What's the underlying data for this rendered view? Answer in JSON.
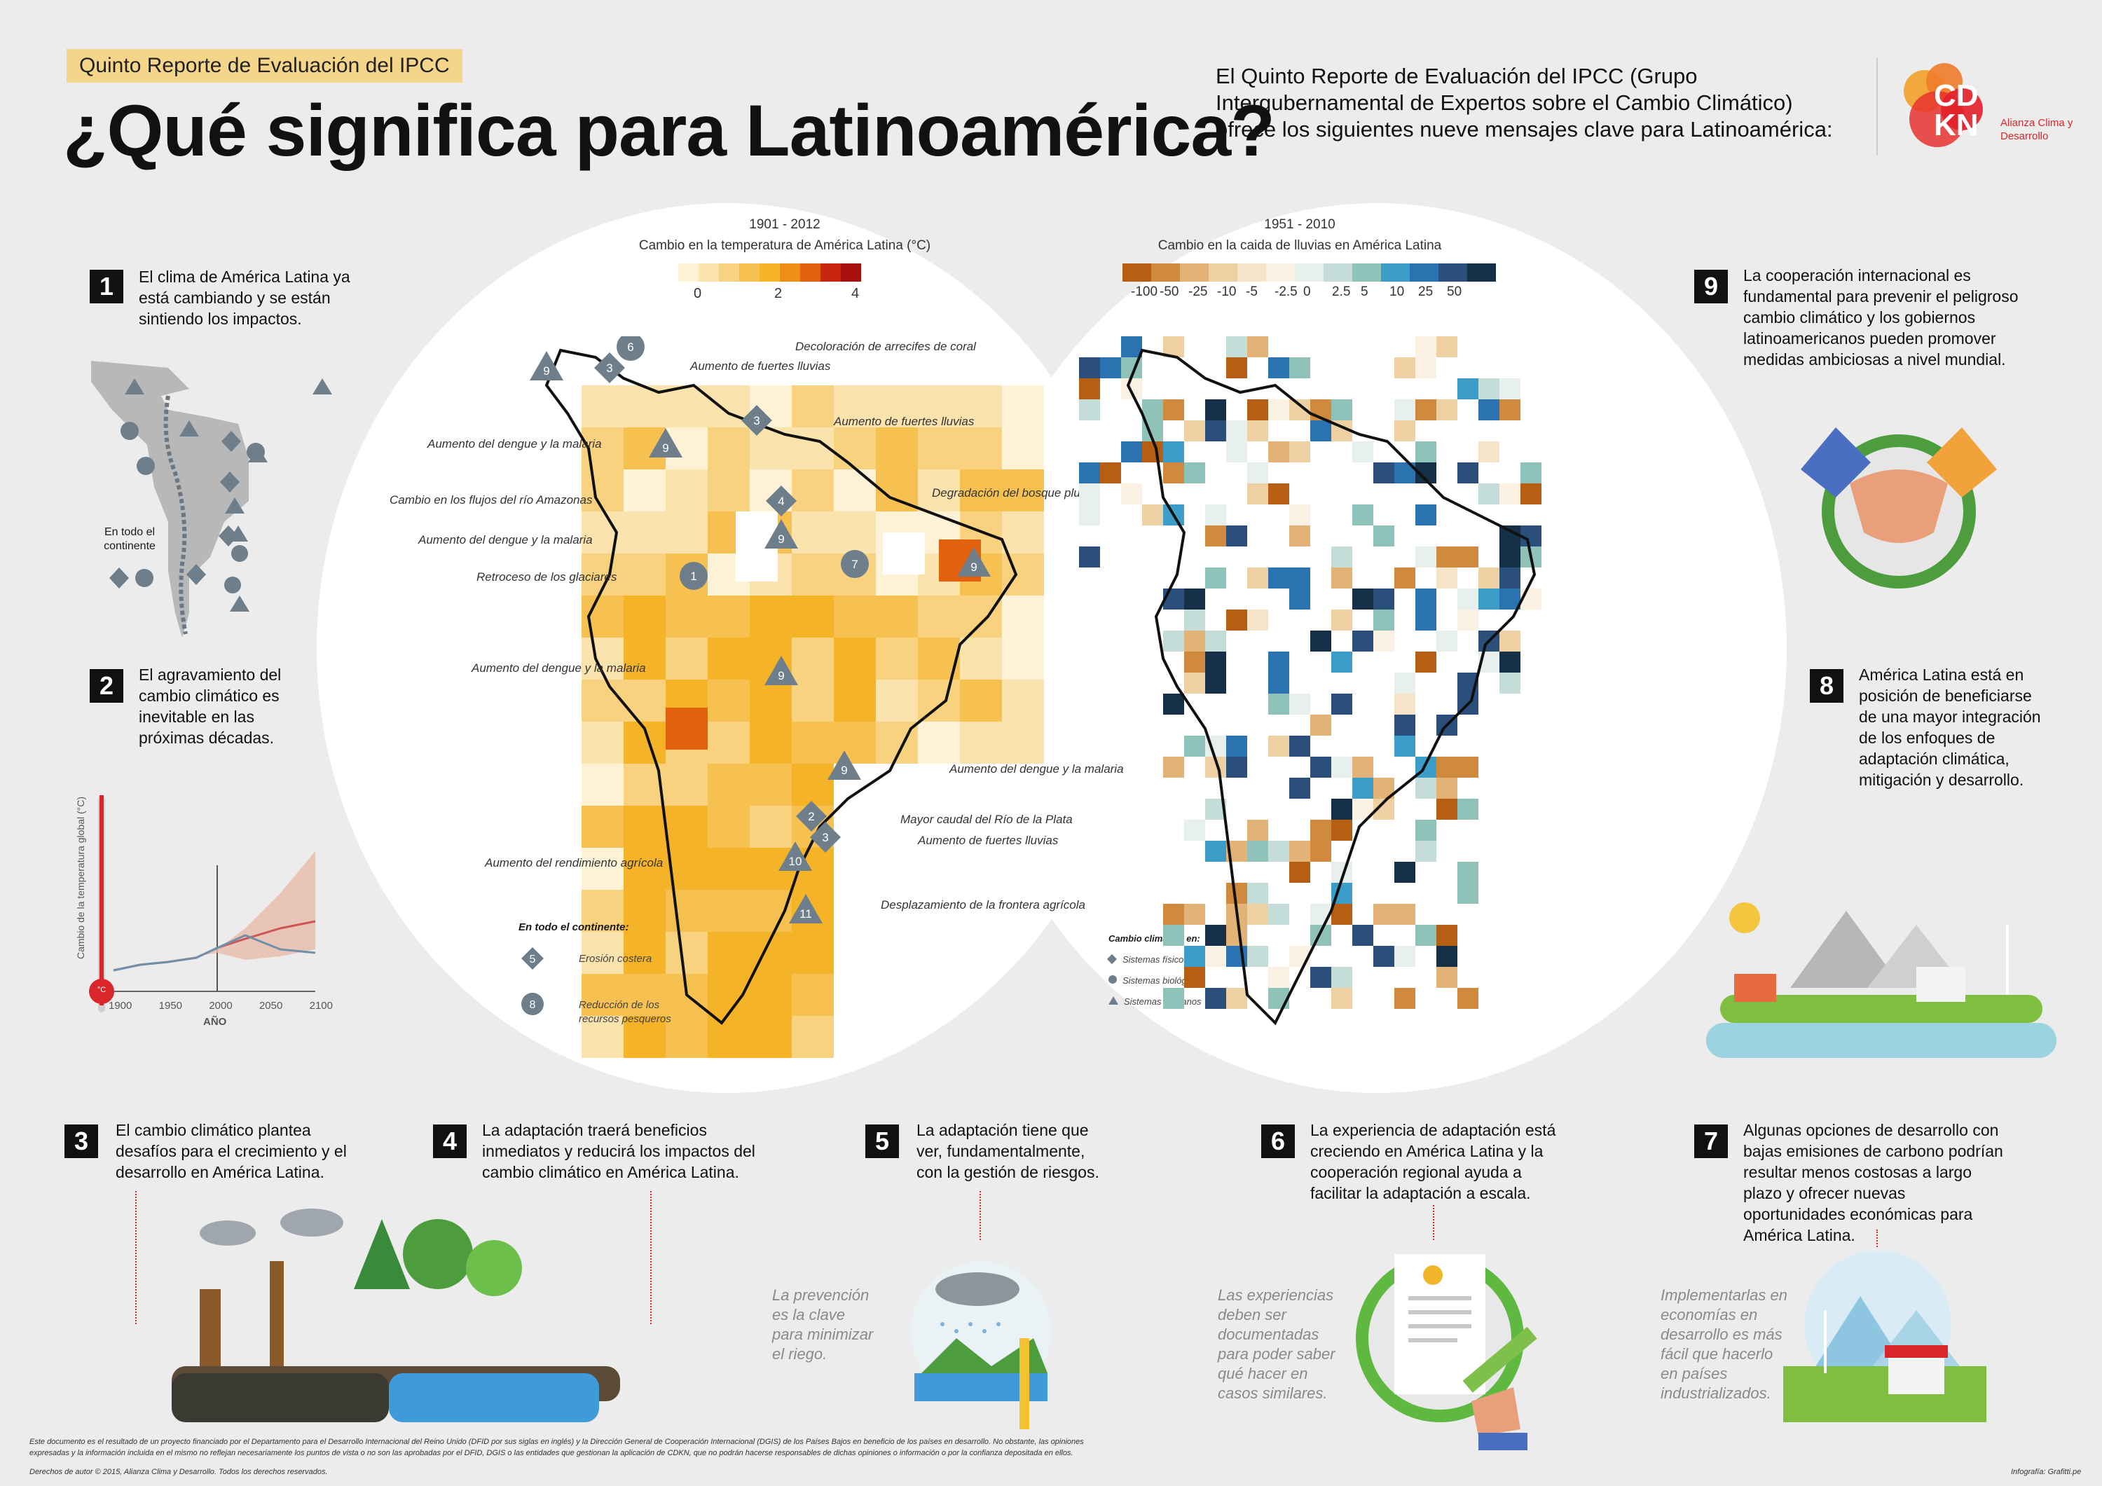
{
  "header": {
    "tag": "Quinto Reporte de Evaluación del IPCC",
    "title": "¿Qué significa para Latinoamérica?",
    "intro": "El Quinto Reporte de Evaluación del IPCC (Grupo Intergubernamental de Expertos sobre el Cambio Climático) ofrece los siguientes nueve mensajes clave para Latinoamérica:",
    "logo_letters": "CDKN",
    "logo_text": "Alianza Clima y Desarrollo"
  },
  "messages": [
    {
      "n": "1",
      "text": "El clima de América Latina ya está cambiando y se están sintiendo los impactos."
    },
    {
      "n": "2",
      "text": "El agravamiento del cambio climático es inevitable en las próximas décadas."
    },
    {
      "n": "3",
      "text": "El cambio climático plantea desafíos para el crecimiento y el desarrollo en América Latina."
    },
    {
      "n": "4",
      "text": "La adaptación traerá beneficios inmediatos y reducirá los impactos del cambio climático en América Latina."
    },
    {
      "n": "5",
      "text": "La adaptación tiene que ver, fundamentalmente, con la gestión de riesgos."
    },
    {
      "n": "6",
      "text": "La experiencia de adaptación está creciendo en América Latina y la cooperación regional ayuda a facilitar la adaptación a escala."
    },
    {
      "n": "7",
      "text": "Algunas opciones de desarrollo con bajas emisiones de carbono podrían resultar menos costosas a largo plazo y ofrecer nuevas oportunidades económicas para América Latina."
    },
    {
      "n": "8",
      "text": "América Latina está en posición de beneficiarse de una mayor integración de los enfoques de adaptación climática, mitigación y desarrollo."
    },
    {
      "n": "9",
      "text": "La cooperación internacional es fundamental para prevenir el peligroso cambio climático y los gobiernos latinoamericanos pueden promover medidas ambiciosas a nivel mundial."
    }
  ],
  "notes": {
    "n5": "La prevención es la clave para minimizar el riego.",
    "n6": "Las experiencias deben ser documentadas para poder saber qué hacer en casos similares.",
    "n7": "Implementarlas en economías en desarrollo es más fácil que hacerlo en países industrializados."
  },
  "minimap": {
    "continent_label": "En todo el continente"
  },
  "tempchart": {
    "ylabel": "Cambio de la temperatura global (°C)",
    "xlabel": "AÑO",
    "xticks": [
      "1900",
      "1950",
      "2000",
      "2050",
      "2100"
    ],
    "unit": "°C"
  },
  "map_temp": {
    "period": "1901 - 2012",
    "title": "Cambio en la temperatura de América Latina (°C)",
    "legend_ticks": [
      "0",
      "2",
      "4"
    ],
    "legend_colors": [
      "#fdf1d6",
      "#fbe3ad",
      "#f8d27f",
      "#f6c150",
      "#f5b428",
      "#ee8f15",
      "#e2610f",
      "#c9260e",
      "#a81010"
    ],
    "labels": [
      "Decoloración de arrecifes de coral",
      "Aumento de fuertes lluvias",
      "Aumento del dengue y la malaria",
      "Aumento de fuertes lluvias",
      "Cambio en los flujos del río Amazonas",
      "Degradación del bosque pluvial",
      "Aumento del dengue y la malaria",
      "Retroceso de los glaciares",
      "Aumento del dengue y la malaria",
      "Aumento del dengue y la malaria",
      "Mayor caudal del Río de la Plata",
      "Aumento de fuertes lluvias",
      "Aumento del rendimiento agrícola",
      "Desplazamiento de la frontera agrícola"
    ],
    "continent_title": "En todo el continente:",
    "continent_items": [
      {
        "n": "5",
        "label": "Erosión costera"
      },
      {
        "n": "8",
        "label": "Reducción de los recursos pesqueros"
      }
    ],
    "key_title": "Cambio climático en:",
    "key_items": [
      "Sistemas físicos",
      "Sistemas biológicos",
      "Sistemas humanos"
    ]
  },
  "map_rain": {
    "period": "1951 - 2010",
    "title": "Cambio en la caida de lluvias en América Latina",
    "legend_ticks": [
      "-100",
      "-50",
      "-25",
      "-10",
      "-5",
      "-2.5",
      "0",
      "2.5",
      "5",
      "10",
      "25",
      "50"
    ],
    "legend_colors": [
      "#b65f12",
      "#cf8a3d",
      "#e3b277",
      "#efd0a3",
      "#f6e4c8",
      "#fbf2e3",
      "#e8f0ee",
      "#c5ddd8",
      "#8fc2b8",
      "#3c9ec8",
      "#2a73b0",
      "#2a4f7a",
      "#142f46"
    ]
  },
  "footer": {
    "disclaimer": "Este documento es el resultado de un proyecto financiado por el Departamento para el Desarrollo Internacional del Reino Unido (DFID por sus siglas en inglés) y la Dirección General de Cooperación Internacional (DGIS) de los Países Bajos en beneficio de los países en desarrollo. No obstante, las opiniones expresadas y la información incluida en el mismo no reflejan necesariamente los puntos de vista o no son las aprobadas por el DFID, DGIS o las entidades que gestionan la aplicación de CDKN, que no podrán hacerse responsables de dichas opiniones o información o por la confianza depositada en ellos.",
    "rights": "Derechos de autor © 2015, Alianza Clima y Desarrollo. Todos los derechos reservados.",
    "credit": "Infografía: Grafitti.pe"
  }
}
